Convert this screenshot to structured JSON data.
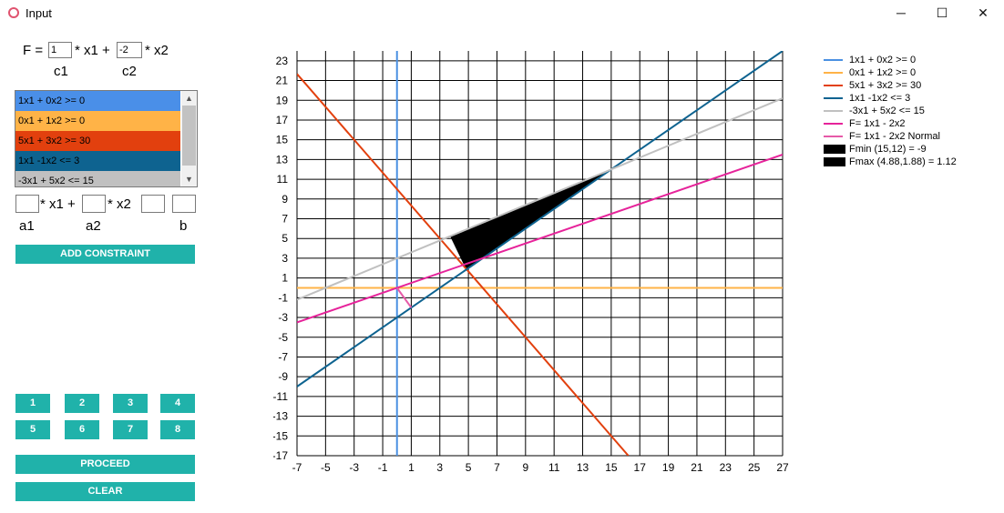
{
  "window": {
    "title": "Input",
    "minimize": "─",
    "maximize": "☐",
    "close": "✕"
  },
  "objective": {
    "prefix": "F =",
    "c1_value": "1",
    "x1_text": "* x1 +",
    "c2_value": "-2",
    "x2_text": "* x2",
    "c1_label": "c1",
    "c2_label": "c2"
  },
  "constraints_list": [
    {
      "label": "1x1 + 0x2 >= 0",
      "bg": "#4a8fe8"
    },
    {
      "label": "0x1 + 1x2 >= 0",
      "bg": "#ffb347"
    },
    {
      "label": "5x1 + 3x2 >= 30",
      "bg": "#e2400e"
    },
    {
      "label": "1x1 -1x2 <= 3",
      "bg": "#0e6390"
    },
    {
      "label": "-3x1 + 5x2 <= 15",
      "bg": "#c0c0c0"
    }
  ],
  "new_constraint": {
    "a1_value": "",
    "x1_text": "* x1 +",
    "a2_value": "",
    "x2_text": "* x2",
    "sign_value": "",
    "b_value": "",
    "a1_label": "a1",
    "a2_label": "a2",
    "b_label": "b"
  },
  "buttons": {
    "add_constraint": "ADD CONSTRAINT",
    "numbers": [
      "1",
      "2",
      "3",
      "4",
      "5",
      "6",
      "7",
      "8"
    ],
    "proceed": "PROCEED",
    "clear": "CLEAR"
  },
  "legend": [
    {
      "label": "1x1 + 0x2 >= 0",
      "color": "#4a90e2",
      "kind": "line"
    },
    {
      "label": "0x1 + 1x2 >= 0",
      "color": "#ffb347",
      "kind": "line"
    },
    {
      "label": "5x1 + 3x2 >= 30",
      "color": "#e2400e",
      "kind": "line"
    },
    {
      "label": "1x1 -1x2 <= 3",
      "color": "#0e6390",
      "kind": "line"
    },
    {
      "label": "-3x1 + 5x2 <= 15",
      "color": "#c0c0c0",
      "kind": "line"
    },
    {
      "label": "F= 1x1 - 2x2",
      "color": "#e6239a",
      "kind": "line"
    },
    {
      "label": "F= 1x1 - 2x2 Normal",
      "color": "#e65aa8",
      "kind": "line"
    },
    {
      "label": "Fmin (15,12) = -9",
      "color": "#000000",
      "kind": "box"
    },
    {
      "label": "Fmax (4.88,1.88) = 1.12",
      "color": "#000000",
      "kind": "box"
    }
  ],
  "chart_data": {
    "type": "line",
    "xlim": [
      -7,
      27
    ],
    "ylim": [
      -17,
      24
    ],
    "x_ticks": [
      -7,
      -5,
      -3,
      -1,
      1,
      3,
      5,
      7,
      9,
      11,
      13,
      15,
      17,
      19,
      21,
      23,
      25,
      27
    ],
    "y_ticks": [
      23,
      21,
      19,
      17,
      15,
      13,
      11,
      9,
      7,
      5,
      3,
      1,
      -1,
      -3,
      -5,
      -7,
      -9,
      -11,
      -13,
      -15,
      -17
    ],
    "grid": true,
    "series": [
      {
        "name": "1x1 + 0x2 >= 0",
        "color": "#4a90e2",
        "x": [
          0,
          0
        ],
        "y": [
          -17,
          24
        ]
      },
      {
        "name": "0x1 + 1x2 >= 0",
        "color": "#ffb347",
        "x": [
          -7,
          27
        ],
        "y": [
          0,
          0
        ]
      },
      {
        "name": "5x1 + 3x2 >= 30",
        "color": "#e2400e",
        "x": [
          -7,
          16.2
        ],
        "y": [
          21.67,
          -17
        ]
      },
      {
        "name": "1x1 -1x2 <= 3",
        "color": "#0e6390",
        "x": [
          -7,
          27
        ],
        "y": [
          -10,
          24
        ]
      },
      {
        "name": "-3x1 + 5x2 <= 15",
        "color": "#c0c0c0",
        "x": [
          -7,
          27
        ],
        "y": [
          -1.2,
          19.2
        ]
      },
      {
        "name": "F= 1x1 - 2x2",
        "color": "#e6239a",
        "x": [
          -7,
          27
        ],
        "y": [
          -3.5,
          13.5
        ]
      },
      {
        "name": "F= 1x1 - 2x2 Normal",
        "color": "#e65aa8",
        "x": [
          0,
          1
        ],
        "y": [
          0,
          -2
        ]
      }
    ],
    "feasible_region": {
      "x": [
        3.75,
        4.875,
        15
      ],
      "y": [
        5.25,
        1.875,
        12
      ]
    }
  }
}
